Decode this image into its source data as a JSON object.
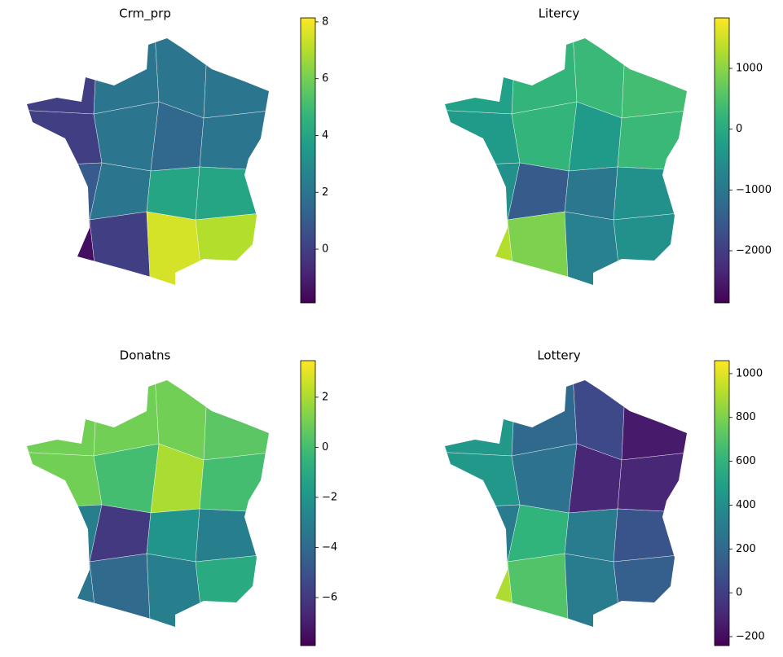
{
  "chart_data": [
    {
      "type": "choropleth",
      "title": "Crm_prp",
      "colormap": "viridis",
      "values": [
        0,
        2,
        2,
        2,
        0,
        2,
        1.5,
        2,
        1,
        2,
        4,
        4,
        -1.5,
        0,
        7.5,
        7
      ],
      "ylim": [
        -1.89,
        8.14
      ],
      "yticks": [
        0,
        2,
        4,
        6,
        8
      ]
    },
    {
      "type": "choropleth",
      "title": "Litercy",
      "colormap": "viridis",
      "values": [
        -200,
        200,
        300,
        400,
        -300,
        200,
        -300,
        300,
        -500,
        -1500,
        -1000,
        -500,
        1300,
        900,
        -800,
        -500
      ],
      "ylim": [
        -2857,
        1830
      ],
      "yticks": [
        {
          "value": -2000,
          "label": "−2000"
        },
        {
          "value": -1000,
          "label": "−1000"
        },
        0,
        1000
      ]
    },
    {
      "type": "choropleth",
      "title": "Donatns",
      "colormap": "viridis",
      "values": [
        1,
        1,
        1,
        0.5,
        1,
        0,
        2,
        0,
        -3,
        -6,
        -2,
        -3,
        -3.5,
        -4,
        -3,
        -1
      ],
      "ylim": [
        -7.92,
        3.46
      ],
      "yticks": [
        {
          "value": -6,
          "label": "−6"
        },
        {
          "value": -4,
          "label": "−4"
        },
        {
          "value": -2,
          "label": "−2"
        },
        0,
        2
      ]
    },
    {
      "type": "choropleth",
      "title": "Lottery",
      "colormap": "viridis",
      "values": [
        450,
        200,
        50,
        -150,
        450,
        250,
        -100,
        -100,
        300,
        600,
        300,
        100,
        900,
        700,
        300,
        150
      ],
      "ylim": [
        -241,
        1059
      ],
      "yticks": [
        {
          "value": -200,
          "label": "−200"
        },
        0,
        200,
        400,
        600,
        800,
        1000
      ]
    }
  ]
}
